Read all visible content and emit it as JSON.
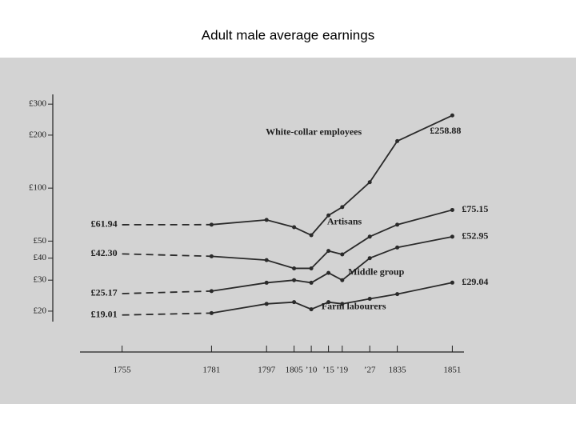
{
  "chart_data": {
    "type": "line",
    "title": "Adult male average earnings",
    "yscale": "log",
    "ylim": [
      18,
      320
    ],
    "yticks": [
      {
        "value": 300,
        "label": "£300"
      },
      {
        "value": 200,
        "label": "£200"
      },
      {
        "value": 100,
        "label": "£100"
      },
      {
        "value": 50,
        "label": "£50"
      },
      {
        "value": 40,
        "label": "£40"
      },
      {
        "value": 30,
        "label": "£30"
      },
      {
        "value": 20,
        "label": "£20"
      }
    ],
    "xlim": [
      1743,
      1853
    ],
    "xticks": [
      1755,
      1781,
      1797,
      1805,
      {
        "value": 1810,
        "label": "’10"
      },
      {
        "value": 1815,
        "label": "’15"
      },
      {
        "value": 1819,
        "label": "’19"
      },
      {
        "value": 1827,
        "label": "’27"
      },
      1835,
      1851
    ],
    "x": [
      1755,
      1781,
      1797,
      1805,
      1810,
      1815,
      1819,
      1827,
      1835,
      1851
    ],
    "series": [
      {
        "name": "White-collar employees",
        "color": "#2a2a2a",
        "values": [
          61.94,
          62,
          66,
          60,
          54,
          70,
          78,
          108,
          185,
          258.88
        ],
        "value_labels": [
          "£61.94",
          null,
          null,
          null,
          null,
          null,
          null,
          null,
          null,
          "£258.88"
        ]
      },
      {
        "name": "Artisans",
        "color": "#2a2a2a",
        "values": [
          42.3,
          41,
          39,
          35,
          35,
          44,
          42,
          53,
          62,
          75.15
        ],
        "value_labels": [
          "£42.30",
          null,
          null,
          null,
          null,
          null,
          null,
          null,
          null,
          "£75.15"
        ]
      },
      {
        "name": "Middle group",
        "color": "#2a2a2a",
        "values": [
          25.17,
          26,
          29,
          30,
          29,
          33,
          30,
          40,
          46,
          52.95
        ],
        "value_labels": [
          "£25.17",
          null,
          null,
          null,
          null,
          null,
          null,
          null,
          null,
          "£52.95"
        ]
      },
      {
        "name": "Farm labourers",
        "color": "#2a2a2a",
        "values": [
          19.01,
          19.5,
          22,
          22.5,
          20.5,
          22.5,
          22,
          23.5,
          25,
          29.04
        ],
        "value_labels": [
          "£19.01",
          null,
          null,
          null,
          null,
          null,
          null,
          null,
          null,
          "£29.04"
        ]
      }
    ]
  }
}
